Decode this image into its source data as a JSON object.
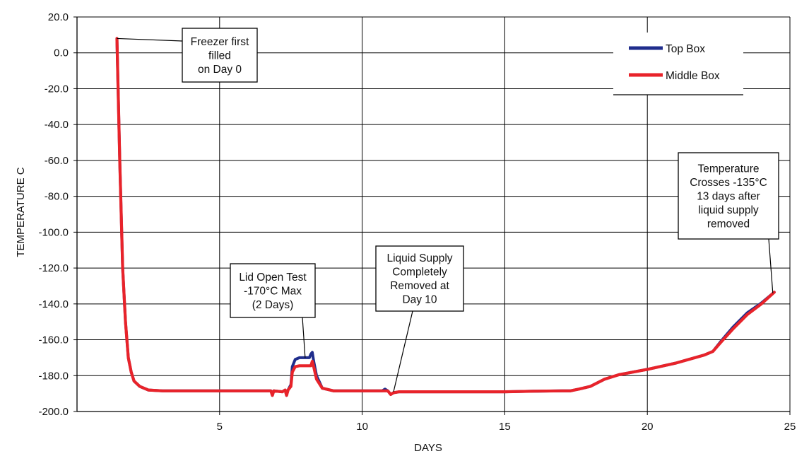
{
  "chart_data": {
    "type": "line",
    "title": "",
    "xlabel": "DAYS",
    "ylabel": "TEMPERATURE C",
    "xlim": [
      0,
      25
    ],
    "ylim": [
      -200,
      20
    ],
    "grid": true,
    "legend_position": "top-right",
    "x_ticks": [
      "5",
      "10",
      "15",
      "20",
      "25"
    ],
    "y_ticks": [
      "20.0",
      "0.0",
      "-20.0",
      "-40.0",
      "-60.0",
      "-80.0",
      "-100.0",
      "-120.0",
      "-140.0",
      "-160.0",
      "-180.0",
      "-200.0"
    ],
    "series": [
      {
        "name": "Top Box",
        "color": "#1f2d8c",
        "points": [
          [
            1.4,
            8
          ],
          [
            1.5,
            -60
          ],
          [
            1.6,
            -120
          ],
          [
            1.7,
            -150
          ],
          [
            1.8,
            -170
          ],
          [
            1.9,
            -178
          ],
          [
            2.0,
            -183
          ],
          [
            2.2,
            -186
          ],
          [
            2.5,
            -188
          ],
          [
            3.0,
            -188.5
          ],
          [
            4.0,
            -188.5
          ],
          [
            5.0,
            -188.5
          ],
          [
            6.0,
            -188.5
          ],
          [
            6.8,
            -188.5
          ],
          [
            6.85,
            -191
          ],
          [
            6.9,
            -188.5
          ],
          [
            7.2,
            -189
          ],
          [
            7.3,
            -188
          ],
          [
            7.35,
            -191
          ],
          [
            7.4,
            -188
          ],
          [
            7.5,
            -185
          ],
          [
            7.55,
            -175
          ],
          [
            7.65,
            -171
          ],
          [
            7.8,
            -170
          ],
          [
            8.0,
            -170
          ],
          [
            8.15,
            -170
          ],
          [
            8.2,
            -168
          ],
          [
            8.25,
            -167
          ],
          [
            8.3,
            -172
          ],
          [
            8.4,
            -180
          ],
          [
            8.6,
            -187
          ],
          [
            9.0,
            -188.5
          ],
          [
            10.0,
            -188.5
          ],
          [
            10.7,
            -188.5
          ],
          [
            10.8,
            -187.5
          ],
          [
            10.9,
            -188.5
          ],
          [
            11.0,
            -190.5
          ],
          [
            11.1,
            -189.5
          ],
          [
            11.3,
            -189
          ],
          [
            12.0,
            -189
          ],
          [
            13.0,
            -189
          ],
          [
            14.0,
            -189
          ],
          [
            15.0,
            -189
          ],
          [
            16.0,
            -188.7
          ],
          [
            17.0,
            -188.5
          ],
          [
            17.3,
            -188.5
          ],
          [
            17.6,
            -187.5
          ],
          [
            18.0,
            -186
          ],
          [
            18.5,
            -182
          ],
          [
            19.0,
            -179.5
          ],
          [
            20.0,
            -176.5
          ],
          [
            21.0,
            -173
          ],
          [
            22.0,
            -168.5
          ],
          [
            22.3,
            -166.5
          ],
          [
            22.6,
            -160.5
          ],
          [
            23.0,
            -153
          ],
          [
            23.5,
            -145
          ],
          [
            24.0,
            -139.5
          ],
          [
            24.45,
            -133.5
          ]
        ]
      },
      {
        "name": "Middle Box",
        "color": "#e8232a",
        "points": [
          [
            1.4,
            8
          ],
          [
            1.5,
            -60
          ],
          [
            1.6,
            -120
          ],
          [
            1.7,
            -150
          ],
          [
            1.8,
            -170
          ],
          [
            1.9,
            -178
          ],
          [
            2.0,
            -183
          ],
          [
            2.2,
            -186
          ],
          [
            2.5,
            -188
          ],
          [
            3.0,
            -188.5
          ],
          [
            4.0,
            -188.5
          ],
          [
            5.0,
            -188.5
          ],
          [
            6.0,
            -188.5
          ],
          [
            6.8,
            -188.5
          ],
          [
            6.85,
            -191
          ],
          [
            6.9,
            -188.5
          ],
          [
            7.2,
            -189
          ],
          [
            7.3,
            -188
          ],
          [
            7.35,
            -191
          ],
          [
            7.4,
            -188
          ],
          [
            7.5,
            -186
          ],
          [
            7.55,
            -178
          ],
          [
            7.65,
            -175
          ],
          [
            7.8,
            -174.5
          ],
          [
            8.0,
            -174.5
          ],
          [
            8.2,
            -174.5
          ],
          [
            8.25,
            -172
          ],
          [
            8.3,
            -175
          ],
          [
            8.4,
            -182
          ],
          [
            8.6,
            -187
          ],
          [
            9.0,
            -188.5
          ],
          [
            10.0,
            -188.5
          ],
          [
            10.7,
            -188.5
          ],
          [
            10.9,
            -188.5
          ],
          [
            11.0,
            -190.5
          ],
          [
            11.1,
            -189.5
          ],
          [
            11.3,
            -189
          ],
          [
            12.0,
            -189
          ],
          [
            13.0,
            -189
          ],
          [
            14.0,
            -189
          ],
          [
            15.0,
            -189
          ],
          [
            16.0,
            -188.7
          ],
          [
            17.0,
            -188.5
          ],
          [
            17.3,
            -188.5
          ],
          [
            17.6,
            -187.5
          ],
          [
            18.0,
            -186
          ],
          [
            18.5,
            -182
          ],
          [
            19.0,
            -179.5
          ],
          [
            20.0,
            -176.5
          ],
          [
            21.0,
            -173
          ],
          [
            22.0,
            -168.5
          ],
          [
            22.3,
            -166.5
          ],
          [
            22.6,
            -161
          ],
          [
            23.0,
            -154
          ],
          [
            23.5,
            -146
          ],
          [
            24.0,
            -140
          ],
          [
            24.45,
            -133.5
          ]
        ]
      }
    ],
    "annotations": [
      {
        "lines": [
          "Freezer first",
          "filled",
          "on Day 0"
        ],
        "target": [
          1.4,
          8
        ]
      },
      {
        "lines": [
          "Lid Open Test",
          "-170°C Max",
          "(2 Days)"
        ],
        "target": [
          8.0,
          -170
        ]
      },
      {
        "lines": [
          "Liquid Supply",
          "Completely",
          "Removed at",
          "Day 10"
        ],
        "target": [
          11.1,
          -189
        ]
      },
      {
        "lines": [
          "Temperature",
          "Crosses -135°C",
          "13 days after",
          "liquid supply",
          "removed"
        ],
        "target": [
          24.4,
          -134
        ]
      }
    ]
  }
}
